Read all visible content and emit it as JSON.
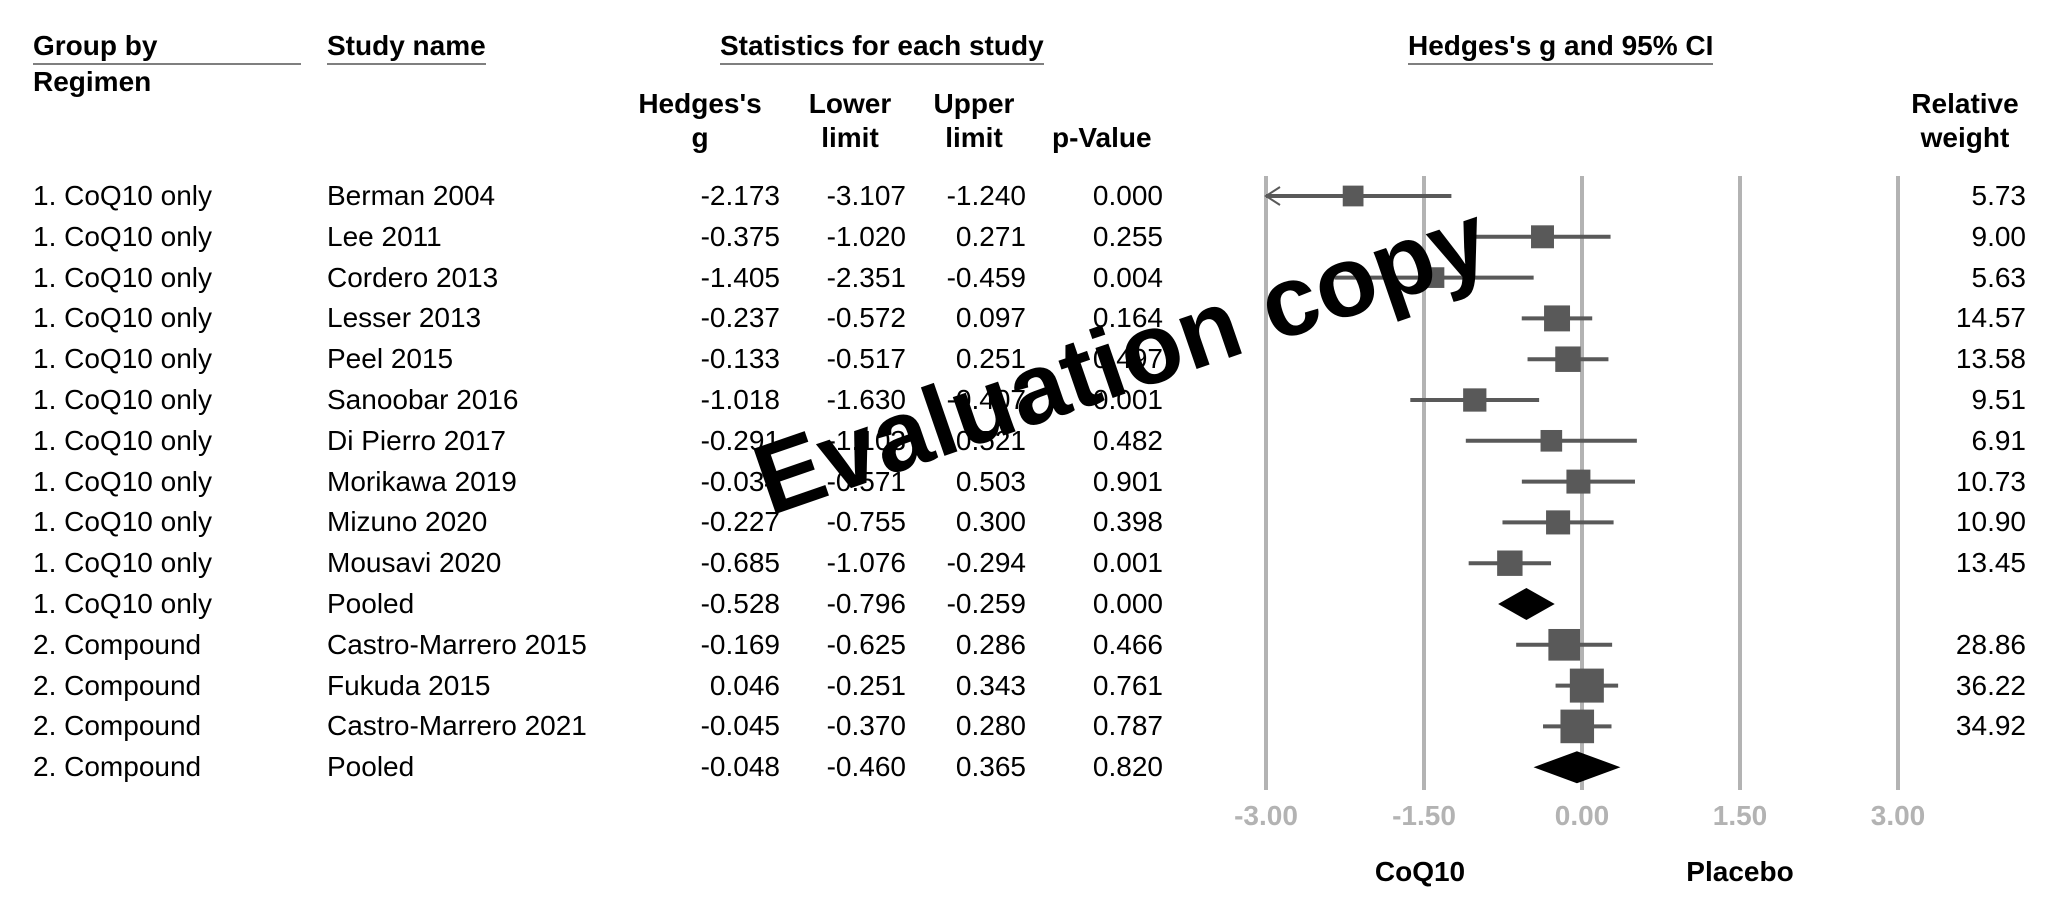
{
  "headers": {
    "group_by": "Group by",
    "group_by_sub": "Regimen",
    "study_name": "Study name",
    "stats": "Statistics for each study",
    "plot_title": "Hedges's g and 95% CI",
    "hedges_g_line1": "Hedges's",
    "hedges_g_line2": "g",
    "lower_line1": "Lower",
    "lower_line2": "limit",
    "upper_line1": "Upper",
    "upper_line2": "limit",
    "pvalue": "p-Value",
    "weight_line1": "Relative",
    "weight_line2": "weight"
  },
  "chart_data": {
    "type": "forest",
    "title": "Hedges's g and 95% CI",
    "xlim": [
      -3.0,
      3.0
    ],
    "xticks": [
      "-3.00",
      "-1.50",
      "0.00",
      "1.50",
      "3.00"
    ],
    "xtick_values": [
      -3.0,
      -1.5,
      0.0,
      1.5,
      3.0
    ],
    "left_label": "CoQ10",
    "right_label": "Placebo",
    "rows": [
      {
        "group": "1. CoQ10 only",
        "study": "Berman 2004",
        "g": "-2.173",
        "lower": "-3.107",
        "upper": "-1.240",
        "p": "0.000",
        "weight": "5.73",
        "g_val": -2.173,
        "lo_val": -3.107,
        "hi_val": -1.24,
        "w_val": 5.73,
        "pooled": false,
        "arrow_left": true
      },
      {
        "group": "1. CoQ10 only",
        "study": "Lee 2011",
        "g": "-0.375",
        "lower": "-1.020",
        "upper": "0.271",
        "p": "0.255",
        "weight": "9.00",
        "g_val": -0.375,
        "lo_val": -1.02,
        "hi_val": 0.271,
        "w_val": 9.0,
        "pooled": false
      },
      {
        "group": "1. CoQ10 only",
        "study": "Cordero 2013",
        "g": "-1.405",
        "lower": "-2.351",
        "upper": "-0.459",
        "p": "0.004",
        "weight": "5.63",
        "g_val": -1.405,
        "lo_val": -2.351,
        "hi_val": -0.459,
        "w_val": 5.63,
        "pooled": false
      },
      {
        "group": "1. CoQ10 only",
        "study": "Lesser 2013",
        "g": "-0.237",
        "lower": "-0.572",
        "upper": "0.097",
        "p": "0.164",
        "weight": "14.57",
        "g_val": -0.237,
        "lo_val": -0.572,
        "hi_val": 0.097,
        "w_val": 14.57,
        "pooled": false
      },
      {
        "group": "1. CoQ10 only",
        "study": "Peel 2015",
        "g": "-0.133",
        "lower": "-0.517",
        "upper": "0.251",
        "p": "0.497",
        "weight": "13.58",
        "g_val": -0.133,
        "lo_val": -0.517,
        "hi_val": 0.251,
        "w_val": 13.58,
        "pooled": false
      },
      {
        "group": "1. CoQ10 only",
        "study": "Sanoobar 2016",
        "g": "-1.018",
        "lower": "-1.630",
        "upper": "-0.407",
        "p": "0.001",
        "weight": "9.51",
        "g_val": -1.018,
        "lo_val": -1.63,
        "hi_val": -0.407,
        "w_val": 9.51,
        "pooled": false
      },
      {
        "group": "1. CoQ10 only",
        "study": "Di Pierro 2017",
        "g": "-0.291",
        "lower": "-1.103",
        "upper": "0.521",
        "p": "0.482",
        "weight": "6.91",
        "g_val": -0.291,
        "lo_val": -1.103,
        "hi_val": 0.521,
        "w_val": 6.91,
        "pooled": false
      },
      {
        "group": "1. CoQ10 only",
        "study": "Morikawa 2019",
        "g": "-0.034",
        "lower": "-0.571",
        "upper": "0.503",
        "p": "0.901",
        "weight": "10.73",
        "g_val": -0.034,
        "lo_val": -0.571,
        "hi_val": 0.503,
        "w_val": 10.73,
        "pooled": false
      },
      {
        "group": "1. CoQ10 only",
        "study": "Mizuno 2020",
        "g": "-0.227",
        "lower": "-0.755",
        "upper": "0.300",
        "p": "0.398",
        "weight": "10.90",
        "g_val": -0.227,
        "lo_val": -0.755,
        "hi_val": 0.3,
        "w_val": 10.9,
        "pooled": false
      },
      {
        "group": "1. CoQ10 only",
        "study": "Mousavi 2020",
        "g": "-0.685",
        "lower": "-1.076",
        "upper": "-0.294",
        "p": "0.001",
        "weight": "13.45",
        "g_val": -0.685,
        "lo_val": -1.076,
        "hi_val": -0.294,
        "w_val": 13.45,
        "pooled": false
      },
      {
        "group": "1. CoQ10 only",
        "study": "Pooled",
        "g": "-0.528",
        "lower": "-0.796",
        "upper": "-0.259",
        "p": "0.000",
        "weight": "",
        "g_val": -0.528,
        "lo_val": -0.796,
        "hi_val": -0.259,
        "w_val": 0,
        "pooled": true
      },
      {
        "group": "2. Compound",
        "study": "Castro-Marrero 2015",
        "g": "-0.169",
        "lower": "-0.625",
        "upper": "0.286",
        "p": "0.466",
        "weight": "28.86",
        "g_val": -0.169,
        "lo_val": -0.625,
        "hi_val": 0.286,
        "w_val": 28.86,
        "pooled": false
      },
      {
        "group": "2. Compound",
        "study": "Fukuda 2015",
        "g": "0.046",
        "lower": "-0.251",
        "upper": "0.343",
        "p": "0.761",
        "weight": "36.22",
        "g_val": 0.046,
        "lo_val": -0.251,
        "hi_val": 0.343,
        "w_val": 36.22,
        "pooled": false
      },
      {
        "group": "2. Compound",
        "study": "Castro-Marrero 2021",
        "g": "-0.045",
        "lower": "-0.370",
        "upper": "0.280",
        "p": "0.787",
        "weight": "34.92",
        "g_val": -0.045,
        "lo_val": -0.37,
        "hi_val": 0.28,
        "w_val": 34.92,
        "pooled": false
      },
      {
        "group": "2. Compound",
        "study": "Pooled",
        "g": "-0.048",
        "lower": "-0.460",
        "upper": "0.365",
        "p": "0.820",
        "weight": "",
        "g_val": -0.048,
        "lo_val": -0.46,
        "hi_val": 0.365,
        "w_val": 0,
        "pooled": true
      }
    ],
    "colors": {
      "marker": "#595959",
      "pooled": "#000000",
      "gridline": "#b3b3b3",
      "tick_label": "#b3b3b3"
    }
  },
  "watermark": "Evaluation copy"
}
